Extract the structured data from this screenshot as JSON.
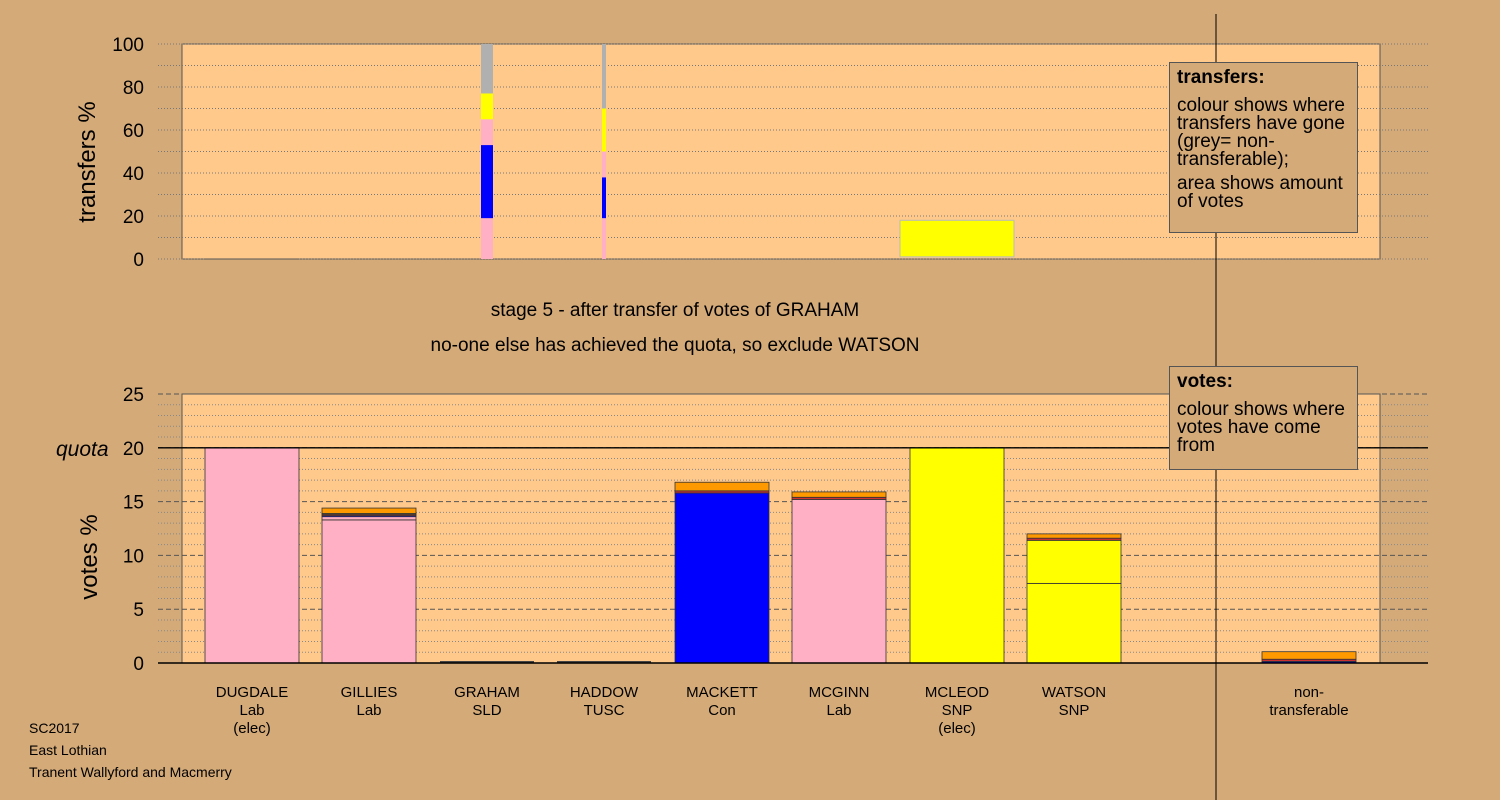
{
  "stage": {
    "line1": "stage 5 - after transfer of votes of GRAHAM",
    "line2": "no-one else has achieved the quota, so exclude WATSON"
  },
  "legend_transfers": {
    "title": "transfers:",
    "line1": "colour shows where transfers have gone (grey= non-transferable);",
    "line2": "area shows amount of votes"
  },
  "legend_votes": {
    "title": "votes:",
    "line1": "colour shows where votes have come from"
  },
  "footer": {
    "line1": "SC2017",
    "line2": "East Lothian",
    "line3": "Tranent Wallyford and Macmerry"
  },
  "colors": {
    "background": "#d4aa78",
    "panel": "#ffc98c",
    "lab": "#ffb0c4",
    "con": "#0000ff",
    "snp": "#ffff00",
    "sld": "#ff9900",
    "tusc": "#cc3333",
    "nontransferable": "#b0b0b0"
  },
  "chart_data": [
    {
      "type": "bar",
      "id": "transfers",
      "ylabel": "transfers %",
      "ylim": [
        0,
        100
      ],
      "yticks": [
        0,
        20,
        40,
        60,
        80,
        100
      ],
      "categories": [
        "DUGDALE",
        "GILLIES",
        "GRAHAM",
        "HADDOW",
        "MACKETT",
        "MCGINN",
        "MCLEOD",
        "WATSON",
        "non-transferable"
      ],
      "columns": [
        {
          "category": "GRAHAM",
          "weight": "wide",
          "segments": [
            {
              "to": "Lab",
              "from": 0,
              "to_pct": 19
            },
            {
              "to": "Con",
              "from": 19,
              "to_pct": 53
            },
            {
              "to": "Lab",
              "from": 53,
              "to_pct": 65
            },
            {
              "to": "SNP",
              "from": 65,
              "to_pct": 77
            },
            {
              "to": "non-transferable",
              "from": 77,
              "to_pct": 100
            }
          ]
        },
        {
          "category": "HADDOW",
          "weight": "narrow",
          "segments": [
            {
              "to": "Lab",
              "from": 0,
              "to_pct": 19
            },
            {
              "to": "Con",
              "from": 19,
              "to_pct": 38
            },
            {
              "to": "Lab",
              "from": 38,
              "to_pct": 50
            },
            {
              "to": "SNP",
              "from": 50,
              "to_pct": 70
            },
            {
              "to": "non-transferable",
              "from": 70,
              "to_pct": 100
            }
          ]
        },
        {
          "category": "MCLEOD",
          "weight": "wide",
          "segments": [
            {
              "to": "SNP",
              "from": 1,
              "to_pct": 18
            }
          ]
        }
      ]
    },
    {
      "type": "bar",
      "id": "votes",
      "ylabel": "votes %",
      "quota_label": "quota",
      "quota": 20,
      "ylim": [
        0,
        25
      ],
      "yticks": [
        0,
        5,
        10,
        15,
        20,
        25
      ],
      "candidates": [
        {
          "name": "DUGDALE",
          "party": "Lab",
          "note": "(elec)",
          "segments": [
            {
              "party": "Lab",
              "value": 20
            }
          ]
        },
        {
          "name": "GILLIES",
          "party": "Lab",
          "note": "",
          "segments": [
            {
              "party": "Lab",
              "value": 13.3
            },
            {
              "party": "Lab",
              "value": 0.3
            },
            {
              "party": "Con",
              "value": 0.1
            },
            {
              "party": "TUSC",
              "value": 0.15
            },
            {
              "party": "SNP",
              "value": 0.05
            },
            {
              "party": "SLD",
              "value": 0.5
            }
          ]
        },
        {
          "name": "GRAHAM",
          "party": "SLD",
          "note": "",
          "segments": []
        },
        {
          "name": "HADDOW",
          "party": "TUSC",
          "note": "",
          "segments": []
        },
        {
          "name": "MACKETT",
          "party": "Con",
          "note": "",
          "segments": [
            {
              "party": "Con",
              "value": 15.8
            },
            {
              "party": "TUSC",
              "value": 0.2
            },
            {
              "party": "SLD",
              "value": 0.8
            }
          ]
        },
        {
          "name": "MCGINN",
          "party": "Lab",
          "note": "",
          "segments": [
            {
              "party": "Lab",
              "value": 15.2
            },
            {
              "party": "TUSC",
              "value": 0.2
            },
            {
              "party": "SLD",
              "value": 0.5
            }
          ]
        },
        {
          "name": "MCLEOD",
          "party": "SNP",
          "note": "(elec)",
          "segments": [
            {
              "party": "SNP",
              "value": 20
            }
          ]
        },
        {
          "name": "WATSON",
          "party": "SNP",
          "note": "",
          "segments": [
            {
              "party": "SNP",
              "value": 7.4
            },
            {
              "party": "SNP",
              "value": 4.0
            },
            {
              "party": "TUSC",
              "value": 0.2
            },
            {
              "party": "SLD",
              "value": 0.4
            }
          ]
        }
      ],
      "nontransferable": {
        "label_line1": "non-",
        "label_line2": "transferable",
        "segments": [
          {
            "party": "Con",
            "value": 0.15
          },
          {
            "party": "TUSC",
            "value": 0.2
          },
          {
            "party": "SLD",
            "value": 0.7
          }
        ]
      }
    }
  ]
}
